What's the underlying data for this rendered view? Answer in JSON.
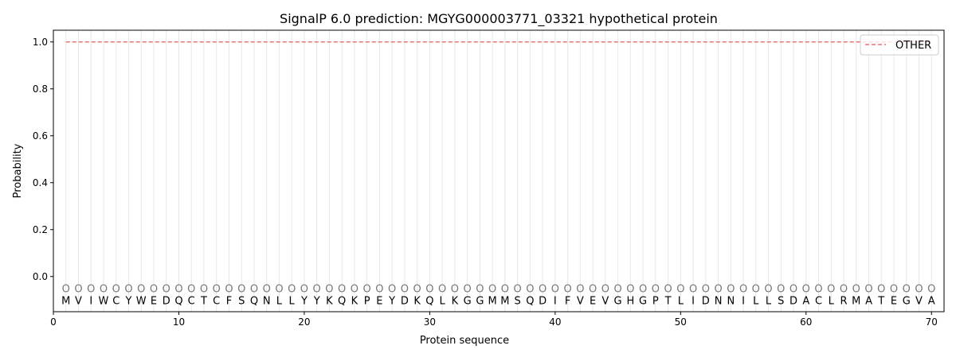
{
  "chart_data": {
    "type": "line",
    "title": "SignalP 6.0 prediction: MGYG000003771_03321 hypothetical protein",
    "xlabel": "Protein sequence",
    "ylabel": "Probability",
    "xlim": [
      0,
      71
    ],
    "ylim": [
      -0.15,
      1.05
    ],
    "xticks": [
      0,
      10,
      20,
      30,
      40,
      50,
      60,
      70
    ],
    "yticks": [
      "0.0",
      "0.2",
      "0.4",
      "0.6",
      "0.8",
      "1.0"
    ],
    "grid": "vertical lines at each residue",
    "legend_position": "top-right",
    "sequence": [
      "M",
      "V",
      "I",
      "W",
      "C",
      "Y",
      "W",
      "E",
      "D",
      "Q",
      "C",
      "T",
      "C",
      "F",
      "S",
      "Q",
      "N",
      "L",
      "L",
      "Y",
      "Y",
      "K",
      "Q",
      "K",
      "P",
      "E",
      "Y",
      "D",
      "K",
      "Q",
      "L",
      "K",
      "G",
      "G",
      "M",
      "M",
      "S",
      "Q",
      "D",
      "I",
      "F",
      "V",
      "E",
      "V",
      "G",
      "H",
      "G",
      "P",
      "T",
      "L",
      "I",
      "D",
      "N",
      "N",
      "I",
      "L",
      "L",
      "S",
      "D",
      "A",
      "C",
      "L",
      "R",
      "M",
      "A",
      "T",
      "E",
      "G",
      "V",
      "A"
    ],
    "predicted_labels": "O",
    "series": [
      {
        "name": "OTHER",
        "color": "#f07070",
        "style": "dashed",
        "x_start": 1,
        "x_end": 70,
        "value": 1.0
      }
    ]
  }
}
